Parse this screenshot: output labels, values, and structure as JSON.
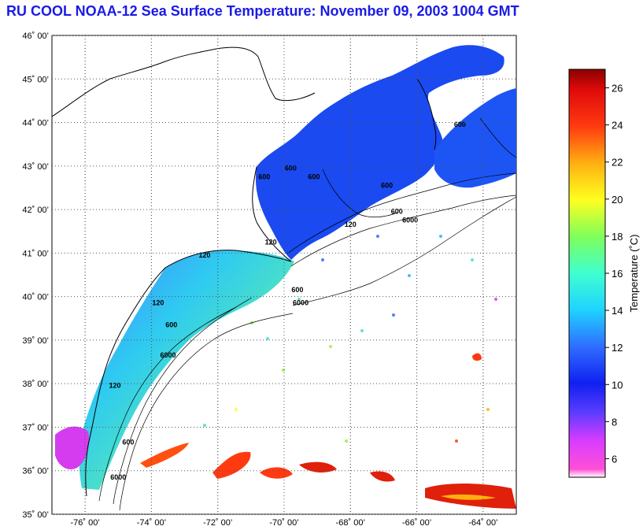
{
  "title": "RU COOL  NOAA-12  Sea Surface Temperature:  November 09, 2003 1004 GMT",
  "map": {
    "lat_labels": [
      "46˚ 00’",
      "45˚ 00’",
      "44˚ 00’",
      "43˚ 00’",
      "42˚ 00’",
      "41˚ 00’",
      "40˚ 00’",
      "39˚ 00’",
      "38˚ 00’",
      "37˚ 00’",
      "36˚ 00’",
      "35˚ 00’"
    ],
    "lon_labels": [
      "-76˚ 00’",
      "-74˚ 00’",
      "-72˚ 00’",
      "-70˚ 00’",
      "-68˚ 00’",
      "-66˚ 00’",
      "-64˚ 00’"
    ],
    "lat_range": [
      35,
      46
    ],
    "lon_range": [
      -77,
      -63
    ],
    "contour_labels": [
      {
        "text": "120",
        "lon": -72.4,
        "lat": 40.9
      },
      {
        "text": "120",
        "lon": -73.8,
        "lat": 39.8
      },
      {
        "text": "600",
        "lon": -73.4,
        "lat": 39.3
      },
      {
        "text": "6000",
        "lon": -73.5,
        "lat": 38.6
      },
      {
        "text": "120",
        "lon": -75.1,
        "lat": 37.9
      },
      {
        "text": "600",
        "lon": -74.7,
        "lat": 36.6
      },
      {
        "text": "6000",
        "lon": -75.0,
        "lat": 35.8
      },
      {
        "text": "600",
        "lon": -69.6,
        "lat": 40.1
      },
      {
        "text": "6000",
        "lon": -69.5,
        "lat": 39.8
      },
      {
        "text": "600",
        "lon": -70.6,
        "lat": 42.7
      },
      {
        "text": "600",
        "lon": -69.8,
        "lat": 42.9
      },
      {
        "text": "600",
        "lon": -69.1,
        "lat": 42.7
      },
      {
        "text": "120",
        "lon": -68.0,
        "lat": 41.6
      },
      {
        "text": "600",
        "lon": -66.6,
        "lat": 41.9
      },
      {
        "text": "6000",
        "lon": -66.2,
        "lat": 41.7
      },
      {
        "text": "600",
        "lon": -64.7,
        "lat": 43.9
      },
      {
        "text": "120",
        "lon": -70.4,
        "lat": 41.2
      },
      {
        "text": "600",
        "lon": -66.9,
        "lat": 42.5
      }
    ]
  },
  "colorbar": {
    "label": "Temperature (˚C)",
    "ticks": [
      "6",
      "8",
      "10",
      "12",
      "14",
      "16",
      "18",
      "20",
      "22",
      "24",
      "26"
    ],
    "range": [
      5,
      27
    ]
  },
  "colors": {
    "title": "#1a1ae6",
    "land": "#ffffff",
    "cloud": "#ffffff"
  }
}
